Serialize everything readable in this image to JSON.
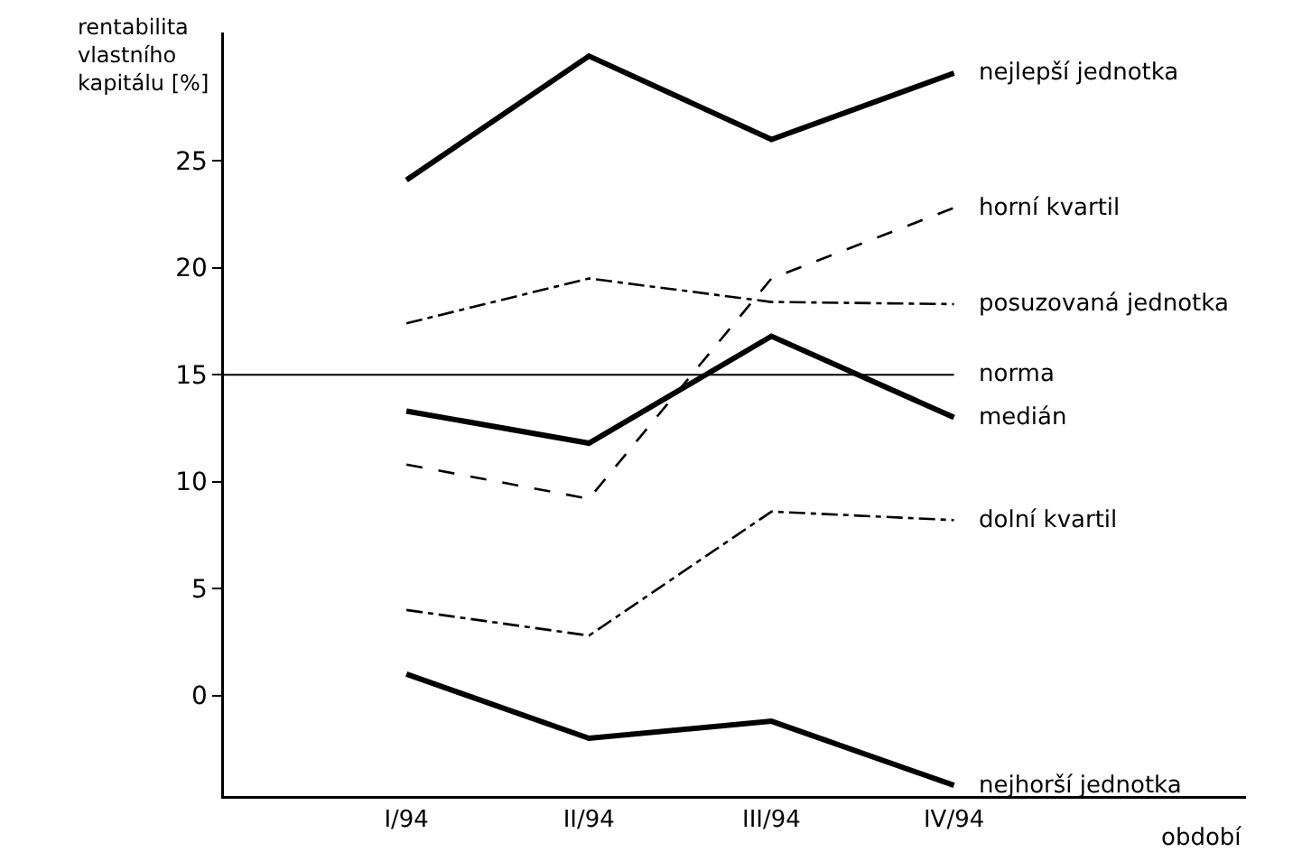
{
  "chart_data": {
    "type": "line",
    "ylabel": "rentabilita\nvlastního\nkapitálu [%]",
    "annotations": [
      "období"
    ],
    "categories": [
      "I/94",
      "II/94",
      "III/94",
      "IV/94"
    ],
    "series": [
      {
        "name": "nejlepší jednotka",
        "color": "#000000",
        "line_style": "solid",
        "values": [
          24.1,
          29.9,
          26.0,
          29.1
        ]
      },
      {
        "name": "horní kvartil",
        "color": "#000000",
        "line_style": "dashed",
        "values": [
          10.8,
          9.2,
          19.5,
          22.8
        ]
      },
      {
        "name": "posuzovaná jednotka",
        "color": "#000000",
        "line_style": "dashdot",
        "values": [
          17.4,
          19.5,
          18.4,
          18.3
        ]
      },
      {
        "name": "medián",
        "color": "#000000",
        "line_style": "solid",
        "values": [
          13.3,
          11.8,
          16.8,
          13.0
        ]
      },
      {
        "name": "dolní kvartil",
        "color": "#000000",
        "line_style": "dashdot",
        "values": [
          4.0,
          2.8,
          8.6,
          8.2
        ]
      },
      {
        "name": "nejhorší jednotka",
        "color": "#000000",
        "line_style": "solid",
        "values": [
          1.0,
          -2.0,
          -1.2,
          -4.2
        ]
      }
    ],
    "ref_lines": [
      {
        "axis": "y",
        "value": 15,
        "label": "norma",
        "color": "#000000"
      }
    ],
    "ylim": [
      -4.7,
      31
    ],
    "yticks": [
      0,
      5,
      10,
      15,
      20,
      25
    ],
    "grid": false,
    "legend": false,
    "marker": "none"
  }
}
